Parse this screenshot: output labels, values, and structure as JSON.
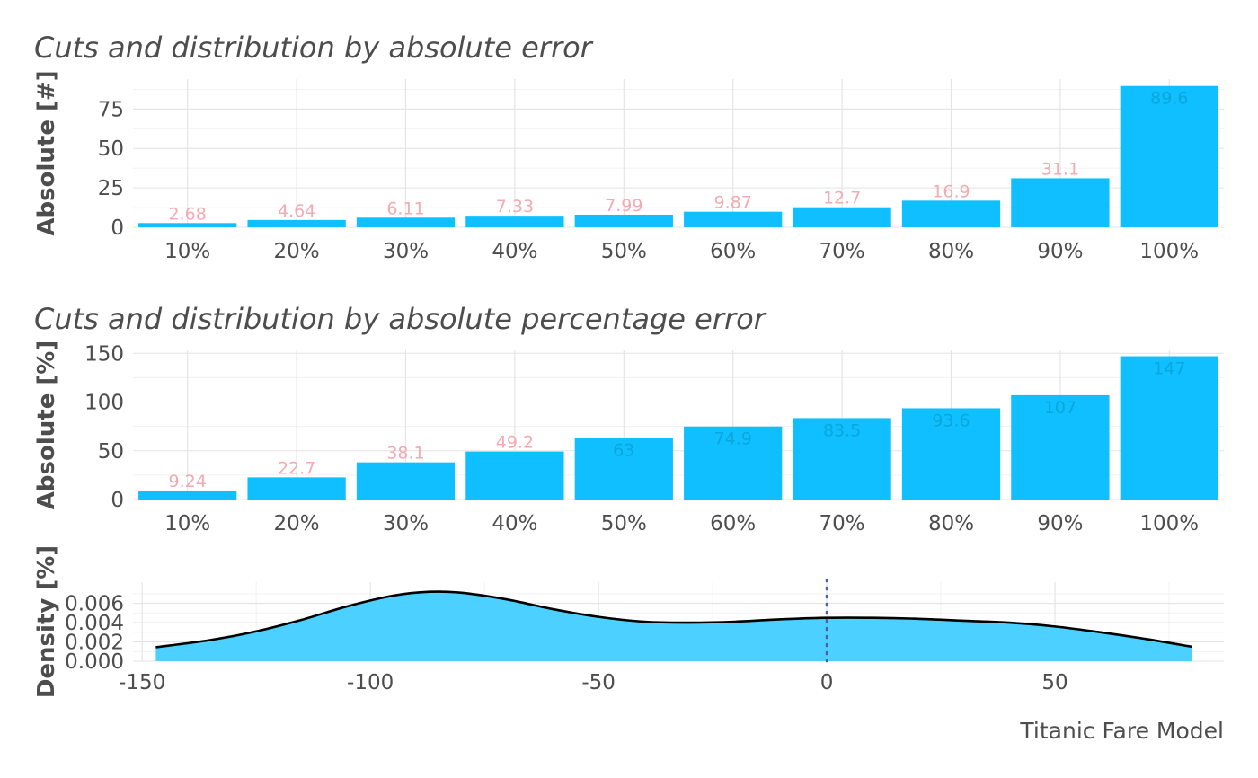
{
  "caption": "Titanic Fare Model",
  "colors": {
    "bar": "#10bfff",
    "label_outside": "#f4aab0",
    "label_inside": "#0aa7d9",
    "density_fill": "#4cd0ff",
    "density_line": "#000000",
    "zero_line": "#4d5fa6"
  },
  "chart_data": [
    {
      "type": "bar",
      "title": "Cuts and distribution by absolute error",
      "ylabel": "Absolute [#]",
      "categories": [
        "10%",
        "20%",
        "30%",
        "40%",
        "50%",
        "60%",
        "70%",
        "80%",
        "90%",
        "100%"
      ],
      "values": [
        2.68,
        4.64,
        6.11,
        7.33,
        7.99,
        9.87,
        12.7,
        16.9,
        31.1,
        89.6
      ],
      "labels": [
        "2.68",
        "4.64",
        "6.11",
        "7.33",
        "7.99",
        "9.87",
        "12.7",
        "16.9",
        "31.1",
        "89.6"
      ],
      "ylim": [
        0,
        94
      ],
      "yticks": [
        0,
        25,
        50,
        75
      ],
      "grid": true
    },
    {
      "type": "bar",
      "title": "Cuts and distribution by absolute percentage error",
      "ylabel": "Absolute [%]",
      "categories": [
        "10%",
        "20%",
        "30%",
        "40%",
        "50%",
        "60%",
        "70%",
        "80%",
        "90%",
        "100%"
      ],
      "values": [
        9.24,
        22.7,
        38.1,
        49.2,
        63,
        74.9,
        83.5,
        93.6,
        107,
        147
      ],
      "labels": [
        "9.24",
        "22.7",
        "38.1",
        "49.2",
        "63",
        "74.9",
        "83.5",
        "93.6",
        "107",
        "147"
      ],
      "ylim": [
        0,
        153
      ],
      "yticks": [
        0,
        50,
        100,
        150
      ],
      "grid": true
    },
    {
      "type": "area",
      "title": "",
      "ylabel": "Density [%]",
      "x": [
        -147,
        -135,
        -125,
        -115,
        -105,
        -95,
        -87,
        -80,
        -70,
        -60,
        -50,
        -40,
        -30,
        -20,
        -10,
        0,
        10,
        20,
        30,
        40,
        50,
        60,
        70,
        80
      ],
      "y": [
        0.00145,
        0.0022,
        0.0031,
        0.0043,
        0.0057,
        0.0068,
        0.0072,
        0.0071,
        0.0064,
        0.0054,
        0.0046,
        0.0041,
        0.004,
        0.0041,
        0.00435,
        0.0045,
        0.0045,
        0.0044,
        0.0042,
        0.004,
        0.0036,
        0.003,
        0.0023,
        0.0015
      ],
      "xlim": [
        -152,
        87
      ],
      "ylim": [
        0,
        0.0082
      ],
      "xticks": [
        -150,
        -100,
        -50,
        0,
        50
      ],
      "yticks": [
        0,
        0.002,
        0.004,
        0.006
      ],
      "ytick_labels": [
        "0.000",
        "0.002",
        "0.004",
        "0.006"
      ],
      "vline": 0,
      "grid": true
    }
  ]
}
